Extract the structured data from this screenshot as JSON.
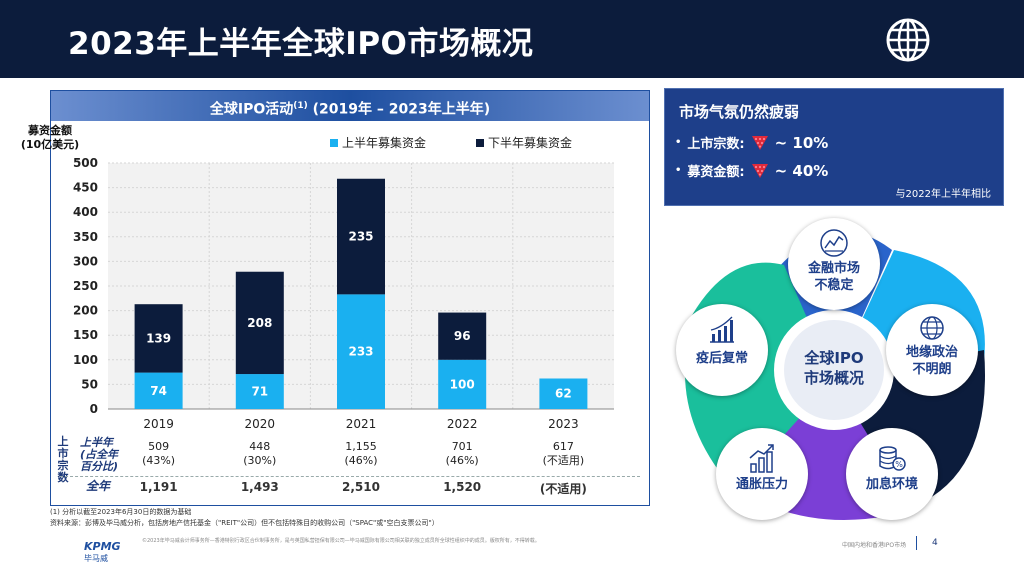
{
  "page": {
    "title": "2023年上半年全球IPO市场概况",
    "page_number": "4",
    "footer_right": "中国内地和香港IPO市场",
    "footer_disclaimer": "©2023年毕马威会计师事务所—香港特别行政区合伙制事务所，是与英国私营担保有限公司—毕马威国际有限公司相关联的独立成员所全球性组织中的成员。版权所有，不得转载。",
    "logo_text": "KPMG",
    "logo_cn": "毕马威"
  },
  "chart_panel": {
    "title": "全球IPO活动",
    "title_sup": "(1)",
    "title_suffix": " (2019年 – 2023年上半年)",
    "ylabel_line1": "募资金额",
    "ylabel_line2": "(10亿美元)",
    "legend_h1": "上半年募集资金",
    "legend_h2": "下半年募集资金",
    "ipo_count_label": "上市宗数",
    "row1_label_1": "上半年",
    "row1_label_2": "(占全年",
    "row1_label_3": "百分比)",
    "row2_label": "全年",
    "note1": "(1)   分析以截至2023年6月30日的数据为基础",
    "note2": "资料来源：彭博及毕马威分析，包括房地产信托基金（\"REIT\"公司）但不包括特殊目的收购公司（\"SPAC\"或\"空白支票公司\"）"
  },
  "chart_data": {
    "type": "bar",
    "stacked": true,
    "categories": [
      "2019",
      "2020",
      "2021",
      "2022",
      "2023"
    ],
    "series": [
      {
        "name": "上半年募集资金",
        "values": [
          74,
          71,
          233,
          100,
          62
        ],
        "color": "#1ab0f0"
      },
      {
        "name": "下半年募集资金",
        "values": [
          139,
          208,
          235,
          96,
          null
        ],
        "color": "#0c1c3c"
      }
    ],
    "ylim": [
      0,
      500
    ],
    "yticks": [
      "0",
      "50",
      "100",
      "150",
      "200",
      "250",
      "300",
      "350",
      "400",
      "450",
      "500"
    ],
    "ylabel": "募资金额 (10亿美元)",
    "title": "全球IPO活动 (2019年 – 2023年上半年)"
  },
  "ipo_counts": [
    {
      "year": "2019",
      "h1": "509",
      "h1_pct": "(43%)",
      "total": "1,191"
    },
    {
      "year": "2020",
      "h1": "448",
      "h1_pct": "(30%)",
      "total": "1,493"
    },
    {
      "year": "2021",
      "h1": "1,155",
      "h1_pct": "(46%)",
      "total": "2,510"
    },
    {
      "year": "2022",
      "h1": "701",
      "h1_pct": "(46%)",
      "total": "1,520"
    },
    {
      "year": "2023",
      "h1": "617",
      "h1_pct": "(不适用)",
      "total": "(不适用)"
    }
  ],
  "market_box": {
    "title": "市场气氛仍然疲弱",
    "row1_label": "上市宗数:",
    "row1_value": "~ 10%",
    "row2_label": "募资金额:",
    "row2_value": "~ 40%",
    "note": "与2022年上半年相比"
  },
  "diagram": {
    "center_line1": "全球IPO",
    "center_line2": "市场概况",
    "items": [
      {
        "line1": "金融市场",
        "line2": "不稳定"
      },
      {
        "line1": "地缘政治",
        "line2": "不明朗"
      },
      {
        "line1": "加息环境",
        "line2": ""
      },
      {
        "line1": "通胀压力",
        "line2": ""
      },
      {
        "line1": "疫后复常",
        "line2": ""
      }
    ],
    "colors": {
      "top": "#1f5cc8",
      "right": "#1ab0f0",
      "bottom_right": "#0c1c3c",
      "bottom_left": "#7b3fd6",
      "left": "#1abf9c"
    }
  }
}
